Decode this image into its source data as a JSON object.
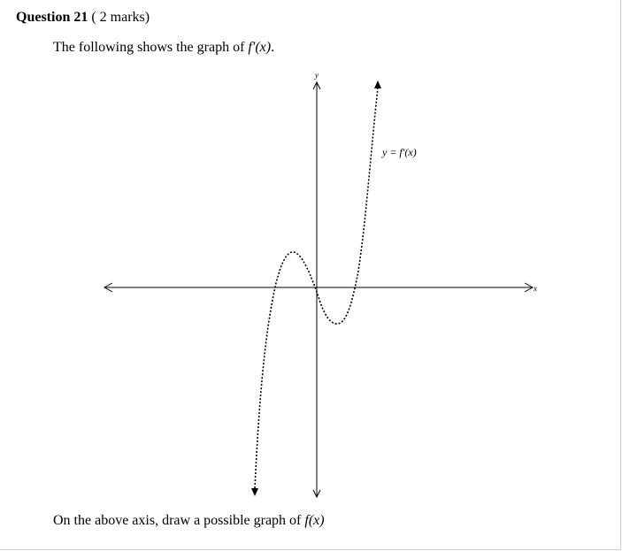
{
  "question": {
    "title": "Question 21",
    "marks": " ( 2 marks)"
  },
  "intro": {
    "before": "The following shows the graph of ",
    "func": "f′(x)",
    "after": "."
  },
  "graph": {
    "x_axis_label": "x",
    "y_axis_label": "y",
    "curve_label": "y = f′(x)"
  },
  "instruction": {
    "before": "On the above axis, draw a possible graph of ",
    "func": "f(x)"
  }
}
